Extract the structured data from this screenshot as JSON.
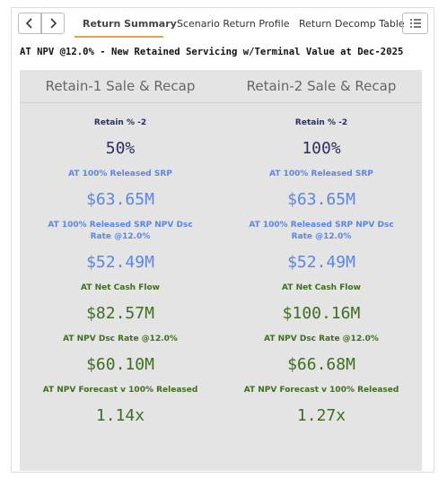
{
  "tabs": [
    "Return Summary",
    "Scenario Return Profile",
    "Return Decomp Table"
  ],
  "title": "AT NPV @12.0% - New Retained Servicing w/Terminal Value at Dec-2025",
  "columns": [
    {
      "header": "Retain-1 Sale & Recap",
      "items": [
        {
          "label": "Retain % -2",
          "value": "50%"
        },
        {
          "label": "AT 100% Released SRP",
          "value": "$63.65M"
        },
        {
          "label": "AT 100% Released SRP NPV Dsc Rate @12.0%",
          "value": "$52.49M"
        },
        {
          "label": "AT Net Cash Flow",
          "value": "$82.57M"
        },
        {
          "label": "AT NPV Dsc Rate @12.0%",
          "value": "$60.10M"
        },
        {
          "label": "AT NPV Forecast v 100% Released",
          "value": "1.14x"
        }
      ]
    },
    {
      "header": "Retain-2 Sale & Recap",
      "items": [
        {
          "label": "Retain % -2",
          "value": "100%"
        },
        {
          "label": "AT 100% Released SRP",
          "value": "$63.65M"
        },
        {
          "label": "AT 100% Released SRP NPV Dsc Rate @12.0%",
          "value": "$52.49M"
        },
        {
          "label": "AT Net Cash Flow",
          "value": "$100.16M"
        },
        {
          "label": "AT NPV Dsc Rate @12.0%",
          "value": "$66.68M"
        },
        {
          "label": "AT NPV Forecast v 100% Released",
          "value": "1.27x"
        }
      ]
    }
  ]
}
